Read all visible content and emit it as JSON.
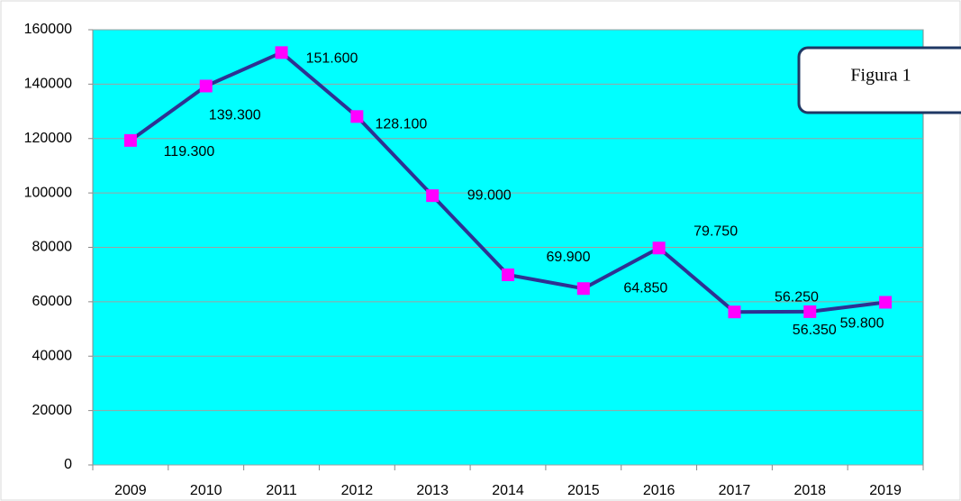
{
  "chart_data": {
    "type": "line",
    "annotation": "Figura 1",
    "categories": [
      "2009",
      "2010",
      "2011",
      "2012",
      "2013",
      "2014",
      "2015",
      "2016",
      "2017",
      "2018",
      "2019"
    ],
    "series": [
      {
        "name": null,
        "color": "#2e3192",
        "marker_color": "#ff00ff",
        "values": [
          119300,
          139300,
          151600,
          128100,
          99000,
          69900,
          64850,
          79750,
          56250,
          56350,
          59800
        ],
        "value_labels": [
          "119.300",
          "139.300",
          "151.600",
          "128.100",
          "99.000",
          "69.900",
          "64.850",
          "79.750",
          "56.250",
          "56.350",
          "59.800"
        ]
      }
    ],
    "ylim": [
      0,
      160000
    ],
    "yticks": [
      0,
      20000,
      40000,
      60000,
      80000,
      100000,
      120000,
      140000,
      160000
    ],
    "grid": true,
    "plot_background": "#00ffff"
  }
}
